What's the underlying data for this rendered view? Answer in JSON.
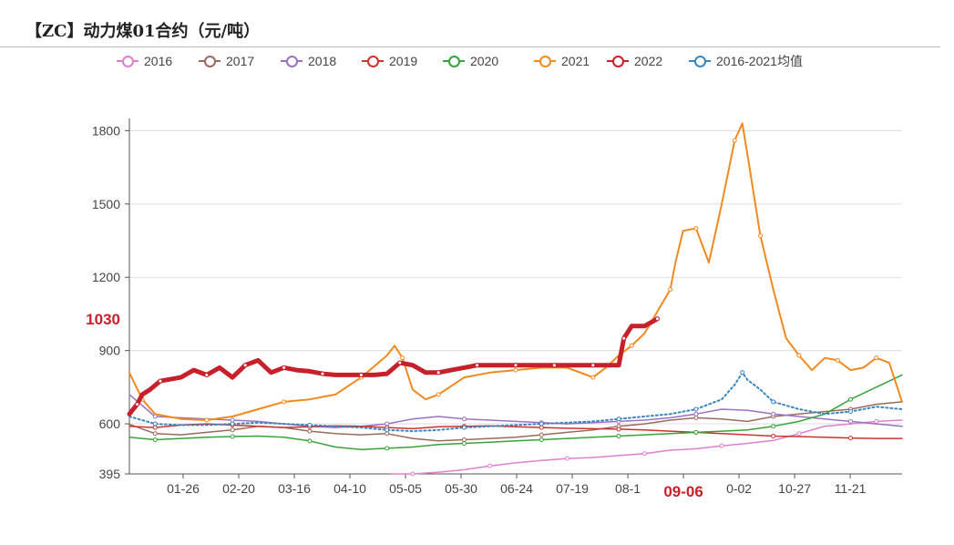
{
  "header": {
    "title": "【ZC】动力煤01合约（元/吨）"
  },
  "legend": [
    {
      "label": "2016",
      "color": "#e07fd0"
    },
    {
      "label": "2017",
      "color": "#9a6a5e"
    },
    {
      "label": "2018",
      "color": "#9b72c3"
    },
    {
      "label": "2019",
      "color": "#c9342e"
    },
    {
      "label": "2020",
      "color": "#37a33a"
    },
    {
      "label": "2021",
      "color": "#f08a1e"
    },
    {
      "label": "2022",
      "color": "#c8202a"
    },
    {
      "label": "2016-2021均值",
      "color": "#3a86c2"
    }
  ],
  "chart_data": {
    "type": "line",
    "title": "【ZC】动力煤01合约（元/吨）",
    "xlabel": "",
    "ylabel": "",
    "x_ticks": [
      "01-26",
      "02-20",
      "03-16",
      "04-10",
      "05-05",
      "05-30",
      "06-24",
      "07-19",
      "08-1",
      "09-06",
      "0-02",
      "10-27",
      "11-21"
    ],
    "highlight_x_tick": "09-06",
    "y_ticks": [
      395,
      600,
      900,
      1200,
      1500,
      1800
    ],
    "highlight_y_tick": 1030,
    "ylim": [
      395,
      1850
    ],
    "x_range": [
      0,
      300
    ],
    "grid": "horizontal",
    "legend_position": "top-center",
    "series": [
      {
        "name": "2016",
        "color": "#e07fd0",
        "style": "solid",
        "width": 1.5,
        "x": [
          102,
          110,
          120,
          130,
          140,
          150,
          160,
          170,
          180,
          190,
          200,
          210,
          220,
          230,
          240,
          250,
          260,
          270,
          280,
          290,
          300
        ],
        "y": [
          395,
          392,
          402,
          412,
          428,
          440,
          450,
          458,
          462,
          470,
          478,
          492,
          498,
          510,
          520,
          532,
          560,
          590,
          600,
          610,
          615
        ]
      },
      {
        "name": "2017",
        "color": "#9a6a5e",
        "style": "solid",
        "width": 1.5,
        "x": [
          0,
          10,
          20,
          30,
          40,
          50,
          60,
          70,
          80,
          90,
          100,
          110,
          120,
          130,
          140,
          150,
          160,
          170,
          180,
          190,
          200,
          210,
          220,
          230,
          240,
          250,
          260,
          270,
          280,
          290,
          300
        ],
        "y": [
          598,
          560,
          555,
          565,
          575,
          590,
          585,
          570,
          560,
          555,
          560,
          540,
          530,
          535,
          540,
          545,
          555,
          565,
          575,
          590,
          600,
          615,
          625,
          620,
          610,
          630,
          640,
          650,
          660,
          680,
          690
        ]
      },
      {
        "name": "2018",
        "color": "#9b72c3",
        "style": "solid",
        "width": 1.5,
        "x": [
          0,
          10,
          20,
          30,
          40,
          50,
          60,
          70,
          80,
          90,
          100,
          110,
          120,
          130,
          140,
          150,
          160,
          170,
          180,
          190,
          200,
          210,
          220,
          230,
          240,
          250,
          260,
          270,
          280,
          290,
          300
        ],
        "y": [
          720,
          630,
          625,
          620,
          615,
          610,
          600,
          590,
          585,
          590,
          600,
          620,
          630,
          620,
          615,
          610,
          605,
          600,
          605,
          610,
          615,
          625,
          640,
          660,
          655,
          640,
          630,
          620,
          610,
          600,
          590
        ]
      },
      {
        "name": "2019",
        "color": "#c9342e",
        "style": "solid",
        "width": 1.5,
        "x": [
          0,
          10,
          20,
          30,
          40,
          50,
          60,
          70,
          80,
          90,
          100,
          110,
          120,
          130,
          140,
          150,
          160,
          170,
          180,
          190,
          200,
          210,
          220,
          230,
          240,
          250,
          260,
          270,
          280,
          290,
          300
        ],
        "y": [
          590,
          585,
          595,
          600,
          595,
          590,
          585,
          588,
          592,
          590,
          585,
          580,
          588,
          590,
          592,
          588,
          585,
          582,
          580,
          578,
          575,
          570,
          565,
          560,
          555,
          550,
          548,
          545,
          542,
          540,
          540
        ]
      },
      {
        "name": "2020",
        "color": "#37a33a",
        "style": "solid",
        "width": 1.5,
        "x": [
          0,
          10,
          20,
          30,
          40,
          50,
          60,
          70,
          80,
          90,
          100,
          110,
          120,
          130,
          140,
          150,
          160,
          170,
          180,
          190,
          200,
          210,
          220,
          230,
          240,
          250,
          260,
          270,
          280,
          290,
          300
        ],
        "y": [
          545,
          535,
          540,
          545,
          548,
          550,
          545,
          530,
          505,
          495,
          500,
          505,
          515,
          520,
          525,
          530,
          535,
          540,
          545,
          550,
          555,
          560,
          565,
          570,
          575,
          590,
          610,
          640,
          700,
          750,
          800
        ]
      },
      {
        "name": "2021",
        "color": "#f08a1e",
        "style": "solid",
        "width": 2,
        "x": [
          0,
          5,
          10,
          20,
          30,
          40,
          50,
          60,
          70,
          80,
          90,
          100,
          103,
          106,
          110,
          115,
          120,
          130,
          140,
          150,
          160,
          170,
          180,
          185,
          190,
          195,
          200,
          205,
          210,
          212,
          215,
          220,
          225,
          230,
          235,
          238,
          240,
          245,
          250,
          255,
          260,
          265,
          270,
          275,
          280,
          285,
          290,
          295,
          300
        ],
        "y": [
          810,
          700,
          640,
          620,
          615,
          630,
          660,
          690,
          700,
          720,
          790,
          880,
          920,
          870,
          740,
          700,
          720,
          790,
          810,
          820,
          830,
          830,
          790,
          830,
          880,
          920,
          970,
          1060,
          1150,
          1260,
          1390,
          1400,
          1260,
          1500,
          1760,
          1830,
          1700,
          1370,
          1150,
          950,
          880,
          820,
          870,
          860,
          820,
          830,
          870,
          850,
          690
        ]
      },
      {
        "name": "2022",
        "color": "#c8202a",
        "style": "solid",
        "width": 5,
        "x": [
          0,
          3,
          5,
          8,
          12,
          20,
          25,
          30,
          35,
          40,
          45,
          50,
          55,
          60,
          65,
          70,
          75,
          80,
          85,
          90,
          95,
          100,
          105,
          110,
          115,
          120,
          125,
          130,
          135,
          140,
          145,
          150,
          155,
          160,
          165,
          170,
          175,
          180,
          185,
          190,
          192,
          195,
          200,
          205
        ],
        "y": [
          640,
          680,
          720,
          740,
          775,
          790,
          820,
          800,
          830,
          790,
          840,
          860,
          810,
          830,
          820,
          815,
          805,
          800,
          800,
          800,
          800,
          805,
          850,
          840,
          810,
          810,
          820,
          830,
          840,
          840,
          840,
          840,
          840,
          840,
          840,
          840,
          840,
          840,
          840,
          840,
          950,
          1000,
          1000,
          1030
        ]
      },
      {
        "name": "2016-2021均值",
        "color": "#3a86c2",
        "style": "dotted",
        "width": 2,
        "x": [
          0,
          10,
          20,
          30,
          40,
          50,
          60,
          70,
          80,
          90,
          100,
          110,
          120,
          130,
          140,
          150,
          160,
          170,
          180,
          190,
          200,
          210,
          220,
          230,
          235,
          238,
          240,
          245,
          250,
          260,
          270,
          280,
          290,
          300
        ],
        "y": [
          630,
          600,
          595,
          595,
          600,
          605,
          600,
          595,
          590,
          585,
          575,
          570,
          575,
          585,
          590,
          595,
          600,
          605,
          610,
          620,
          630,
          640,
          660,
          700,
          760,
          810,
          780,
          740,
          690,
          660,
          640,
          650,
          670,
          660
        ]
      }
    ]
  }
}
